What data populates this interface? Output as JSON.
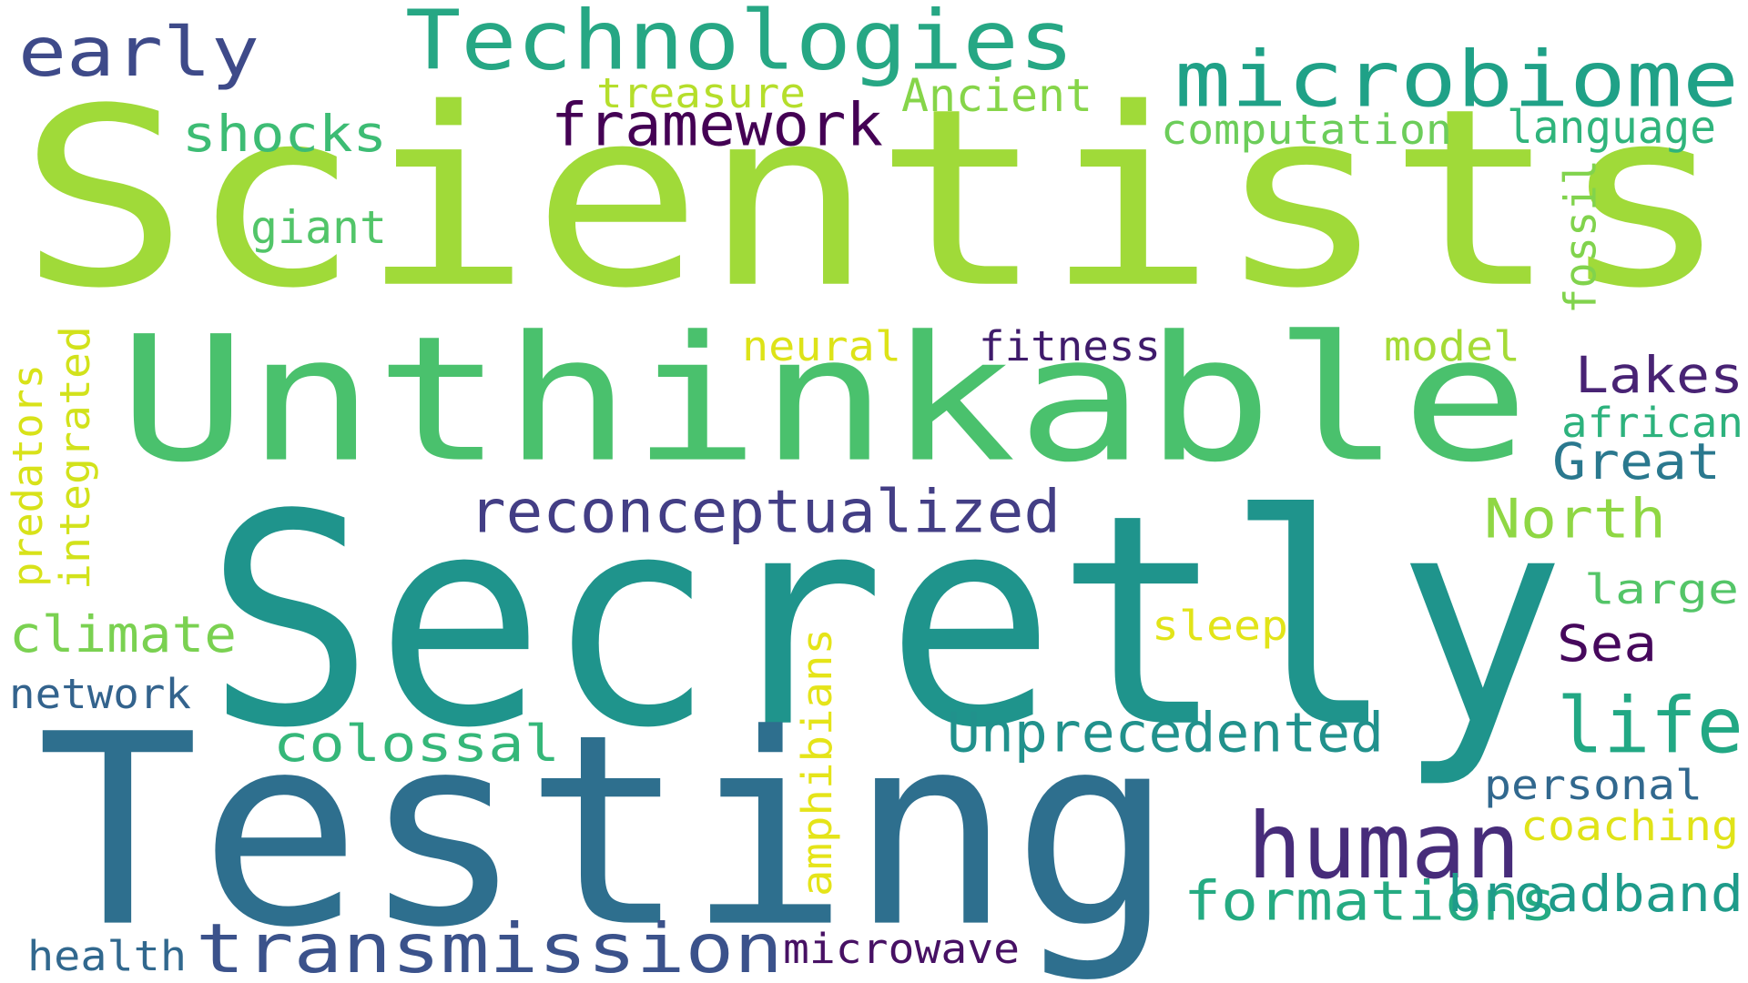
{
  "words": [
    {
      "text": "Scientists",
      "color": "#a0da39",
      "rotated": false
    },
    {
      "text": "Unthinkable",
      "color": "#4ac16d",
      "rotated": false
    },
    {
      "text": "Secretly",
      "color": "#1f948c",
      "rotated": false
    },
    {
      "text": "Testing",
      "color": "#2e6f8e",
      "rotated": false
    },
    {
      "text": "Technologies",
      "color": "#26a784",
      "rotated": false
    },
    {
      "text": "microbiome",
      "color": "#1fa187",
      "rotated": false
    },
    {
      "text": "early",
      "color": "#3e4a89",
      "rotated": false
    },
    {
      "text": "human",
      "color": "#472c7a",
      "rotated": false
    },
    {
      "text": "transmission",
      "color": "#3b528b",
      "rotated": false
    },
    {
      "text": "reconceptualized",
      "color": "#433e85",
      "rotated": false
    },
    {
      "text": "framework",
      "color": "#440154",
      "rotated": false
    },
    {
      "text": "Unprecedented",
      "color": "#21918c",
      "rotated": false
    },
    {
      "text": "formations",
      "color": "#25ab82",
      "rotated": false
    },
    {
      "text": "broadband",
      "color": "#1e9b8a",
      "rotated": false
    },
    {
      "text": "life",
      "color": "#22a884",
      "rotated": false
    },
    {
      "text": "North",
      "color": "#8fd744",
      "rotated": false
    },
    {
      "text": "Great",
      "color": "#2a788e",
      "rotated": false
    },
    {
      "text": "Lakes",
      "color": "#482374",
      "rotated": false
    },
    {
      "text": "Sea",
      "color": "#46085c",
      "rotated": false
    },
    {
      "text": "colossal",
      "color": "#35b779",
      "rotated": false
    },
    {
      "text": "climate",
      "color": "#7ad151",
      "rotated": false
    },
    {
      "text": "shocks",
      "color": "#3dbc74",
      "rotated": false
    },
    {
      "text": "treasure",
      "color": "#b5de2b",
      "rotated": false
    },
    {
      "text": "Ancient",
      "color": "#86d549",
      "rotated": false
    },
    {
      "text": "computation",
      "color": "#6ccd5a",
      "rotated": false
    },
    {
      "text": "language",
      "color": "#2fb47c",
      "rotated": false
    },
    {
      "text": "giant",
      "color": "#52c569",
      "rotated": false
    },
    {
      "text": "neural",
      "color": "#dde318",
      "rotated": false
    },
    {
      "text": "fitness",
      "color": "#3f1b6b",
      "rotated": false
    },
    {
      "text": "model",
      "color": "#a5db36",
      "rotated": false
    },
    {
      "text": "african",
      "color": "#2db27d",
      "rotated": false
    },
    {
      "text": "large",
      "color": "#54c568",
      "rotated": false
    },
    {
      "text": "sleep",
      "color": "#e2e418",
      "rotated": false
    },
    {
      "text": "personal",
      "color": "#31688e",
      "rotated": false
    },
    {
      "text": "coaching",
      "color": "#e0e318",
      "rotated": false
    },
    {
      "text": "network",
      "color": "#33638d",
      "rotated": false
    },
    {
      "text": "health",
      "color": "#31688e",
      "rotated": false
    },
    {
      "text": "microwave",
      "color": "#471164",
      "rotated": false
    },
    {
      "text": "fossil",
      "color": "#81d34d",
      "rotated": true
    },
    {
      "text": "integrated",
      "color": "#d2e21b",
      "rotated": true
    },
    {
      "text": "predators",
      "color": "#d8e219",
      "rotated": true
    },
    {
      "text": "amphibians",
      "color": "#e5e419",
      "rotated": true
    }
  ]
}
